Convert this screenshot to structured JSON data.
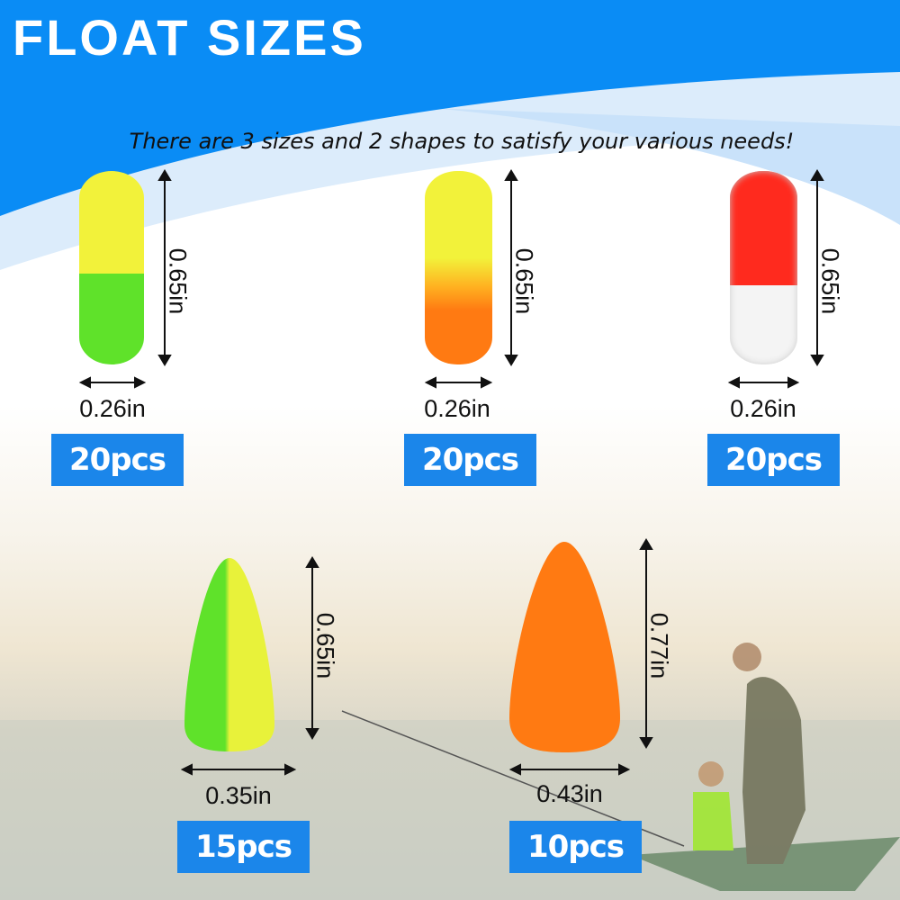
{
  "header": {
    "title": "FLOAT SIZES",
    "subtitle": "There are 3 sizes and 2 shapes to satisfy your various needs!"
  },
  "colors": {
    "header_blue": "#0a8cf5",
    "badge_blue": "#1b86ea",
    "yellow": "#f2f23a",
    "green": "#5fe22a",
    "orange": "#ff7a12",
    "red": "#ff2a1e",
    "white": "#f4f4f4"
  },
  "floats": [
    {
      "shape": "capsule",
      "colors": [
        "yellow",
        "green"
      ],
      "height": "0.65in",
      "width": "0.26in",
      "count": "20pcs"
    },
    {
      "shape": "capsule",
      "colors": [
        "yellow",
        "orange"
      ],
      "height": "0.65in",
      "width": "0.26in",
      "count": "20pcs"
    },
    {
      "shape": "capsule",
      "colors": [
        "red",
        "white"
      ],
      "height": "0.65in",
      "width": "0.26in",
      "count": "20pcs"
    },
    {
      "shape": "bullet",
      "colors": [
        "green",
        "yellow"
      ],
      "height": "0.65in",
      "width": "0.35in",
      "count": "15pcs"
    },
    {
      "shape": "bullet",
      "colors": [
        "orange"
      ],
      "height": "0.77in",
      "width": "0.43in",
      "count": "10pcs"
    }
  ]
}
